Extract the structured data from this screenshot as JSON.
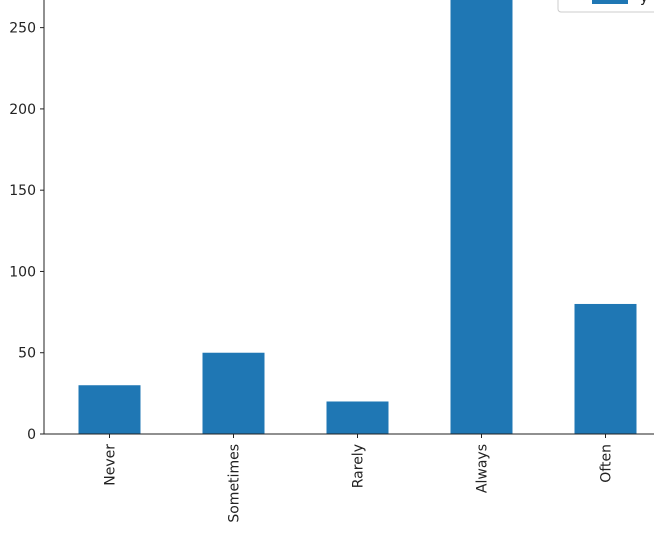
{
  "chart_data": {
    "type": "bar",
    "categories": [
      "Never",
      "Sometimes",
      "Rarely",
      "Always",
      "Often"
    ],
    "series": [
      {
        "name": "y",
        "color": "#1f77b4",
        "values": [
          30,
          50,
          20,
          280,
          80
        ]
      }
    ],
    "ylim": [
      0,
      267
    ],
    "yticks": [
      0,
      50,
      100,
      150,
      200,
      250
    ],
    "legend": "upper right"
  }
}
